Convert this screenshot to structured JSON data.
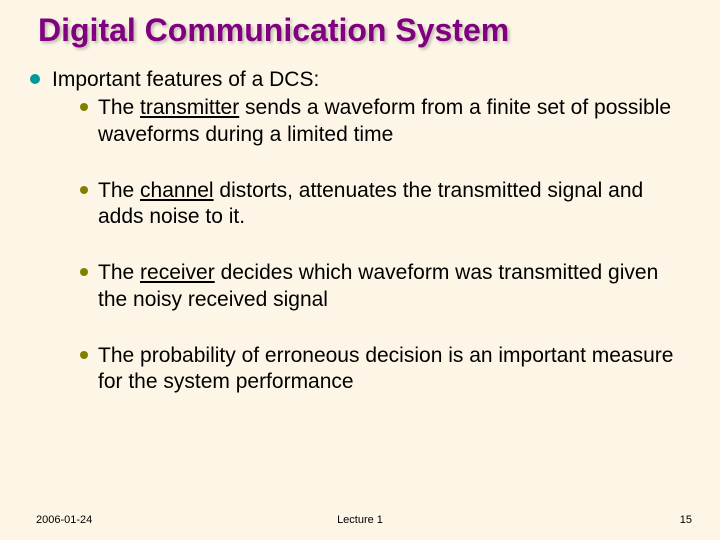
{
  "background_color": "#fdf6e6",
  "title": {
    "text": "Digital Communication System",
    "color": "#800080",
    "fontsize": 32
  },
  "bullet": {
    "main_color": "#009999",
    "sub_color": "#808000",
    "main_size": 10,
    "sub_size": 8
  },
  "body_fontsize": 21,
  "main_item": "Important features of a DCS:",
  "sub_items": [
    {
      "pre": "The ",
      "u": "transmitter",
      "post": " sends a waveform from a finite set of possible waveforms during a limited time"
    },
    {
      "pre": "The ",
      "u": "channel",
      "post": " distorts, attenuates the transmitted signal and adds noise to it."
    },
    {
      "pre": "The ",
      "u": "receiver",
      "post": " decides which waveform was transmitted given the noisy received signal"
    },
    {
      "pre": "",
      "u": "",
      "post": "The probability of erroneous decision is an important measure for the system performance"
    }
  ],
  "sub_item_gap": 30,
  "footer": {
    "date": "2006-01-24",
    "center": "Lecture 1",
    "page": "15",
    "fontsize": 11
  }
}
